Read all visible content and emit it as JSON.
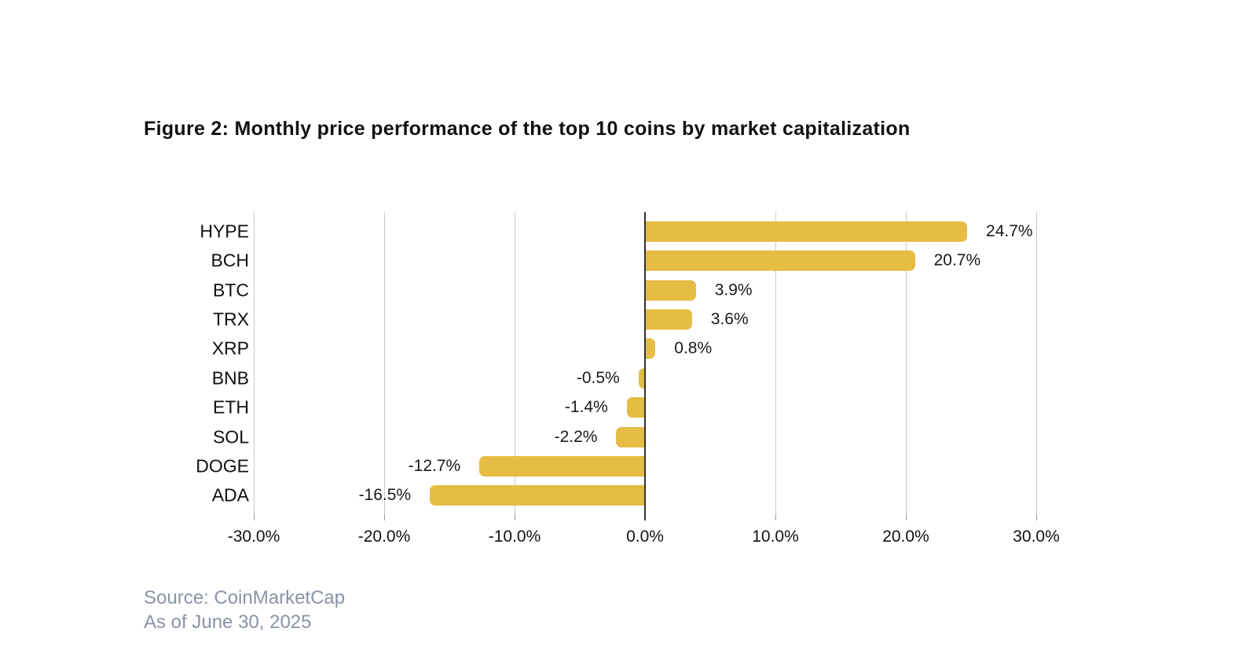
{
  "title": "Figure 2: Monthly price performance of the top 10 coins by market capitalization",
  "source": {
    "line1": "Source: CoinMarketCap",
    "line2": "As of June 30, 2025"
  },
  "colors": {
    "bar": "#E5BD45",
    "gridline": "#C9C9C9",
    "zero_line": "#333333",
    "title_text": "#111111",
    "label_text": "#1A1A1A",
    "source_text": "#8A93A6"
  },
  "chart_data": {
    "type": "bar",
    "orientation": "horizontal",
    "title": "Figure 2: Monthly price performance of the top 10 coins by market capitalization",
    "categories": [
      "HYPE",
      "BCH",
      "BTC",
      "TRX",
      "XRP",
      "BNB",
      "ETH",
      "SOL",
      "DOGE",
      "ADA"
    ],
    "values": [
      24.7,
      20.7,
      3.9,
      3.6,
      0.8,
      -0.5,
      -1.4,
      -2.2,
      -12.7,
      -16.5
    ],
    "value_labels": [
      "24.7%",
      "20.7%",
      "3.9%",
      "3.6%",
      "0.8%",
      "-0.5%",
      "-1.4%",
      "-2.2%",
      "-12.7%",
      "-16.5%"
    ],
    "x_ticks": [
      "-30.0%",
      "-20.0%",
      "-10.0%",
      "0.0%",
      "10.0%",
      "20.0%",
      "30.0%"
    ],
    "x_tick_values": [
      -30,
      -20,
      -10,
      0,
      10,
      20,
      30
    ],
    "xlim": [
      -30,
      30
    ],
    "grid": true,
    "legend": false,
    "bar_color": "#E5BD45"
  }
}
